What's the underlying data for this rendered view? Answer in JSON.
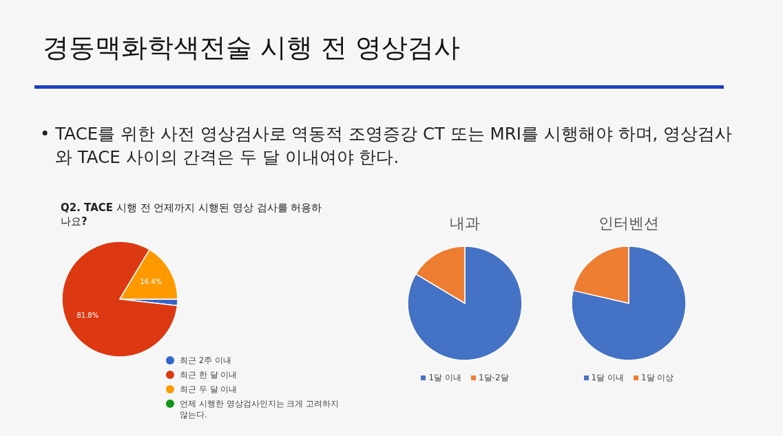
{
  "chart_data": [
    {
      "type": "other",
      "title": "경동맥화학색전술 시행 전 영상검사",
      "annotations": [
        "• TACE를 위한 사전 영상검사로 역동적 조영증강 CT 또는 MRI를 시행해야 하며, 영상검사와 TACE 사이의 간격은 두 달 이내여야 한다."
      ]
    },
    {
      "type": "pie",
      "title": "**Q2. TACE** 시행 전 언제까지 시행된 영상 검사를 허용하나요**?**",
      "categories": [
        "최근 2주 이내",
        "최근 한 달 이내",
        "최근 두 달 이내",
        "언제 시행한 영상검사인지는 크게 고려하지 않는다."
      ],
      "values": [
        1.8,
        81.8,
        16.4,
        0
      ],
      "colors": [
        "#3366cc",
        "#dc3912",
        "#ff9900",
        "#109618"
      ],
      "value_labels": [
        null,
        "81.8%",
        "16.4%",
        null
      ],
      "legend": "bottom right"
    },
    {
      "type": "pie",
      "title": "내과",
      "categories": [
        "1달 이내",
        "1달-2달"
      ],
      "values": [
        83.6,
        16.4
      ],
      "colors": [
        "#4472c4",
        "#ed7d31"
      ],
      "legend": "bottom"
    },
    {
      "type": "pie",
      "title": "인터벤션",
      "categories": [
        "1달 이내",
        "1달 이상"
      ],
      "values": [
        78.6,
        21.4
      ],
      "colors": [
        "#4472c4",
        "#ed7d31"
      ],
      "legend": "bottom"
    }
  ]
}
